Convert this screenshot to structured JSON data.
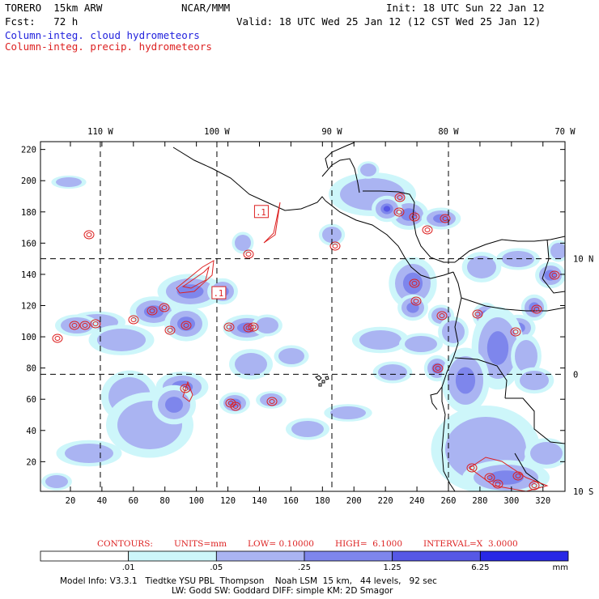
{
  "header": {
    "model": "TORERO  15km ARW",
    "center": "NCAR/MMM",
    "init": "Init: 18 UTC Sun 22 Jan 12",
    "fcst": "Fcst:   72 h",
    "valid": "Valid: 18 UTC Wed 25 Jan 12 (12 CST Wed 25 Jan 12)",
    "field1": "Column-integ. cloud hydrometeors",
    "field2": "Column-integ. precip. hydrometeors"
  },
  "colors": {
    "field1": "#2222dd",
    "field2": "#dd2222",
    "grid": "#000000"
  },
  "chart_data": {
    "type": "heatmap",
    "x_ticks": [
      "20",
      "40",
      "60",
      "80",
      "100",
      "120",
      "140",
      "160",
      "180",
      "200",
      "220",
      "240",
      "260",
      "280",
      "300",
      "320"
    ],
    "x_tick_values": [
      20,
      40,
      60,
      80,
      100,
      120,
      140,
      160,
      180,
      200,
      220,
      240,
      260,
      280,
      300,
      320
    ],
    "y_ticks": [
      "20",
      "40",
      "60",
      "80",
      "100",
      "120",
      "140",
      "160",
      "180",
      "200",
      "220"
    ],
    "y_tick_values": [
      20,
      40,
      60,
      80,
      100,
      120,
      140,
      160,
      180,
      200,
      220
    ],
    "xlim": [
      1,
      334
    ],
    "ylim": [
      1,
      225
    ],
    "lon_labels": [
      "110 W",
      "100 W",
      "90 W",
      "80 W",
      "70 W"
    ],
    "lon_grid_x": [
      39,
      113,
      186,
      260,
      334
    ],
    "lat_labels": [
      "10 N",
      "0",
      "10 S"
    ],
    "lat_grid_y": [
      150,
      76,
      1
    ],
    "contours": {
      "label": "CONTOURS:",
      "units": "UNITS=mm",
      "low": "LOW= 0.10000",
      "high": "HIGH=  6.1000",
      "interval": "INTERVAL=X  3.0000",
      "labels": [
        {
          "text": ".1",
          "x": 141,
          "y": 180
        },
        {
          "text": ".1",
          "x": 114,
          "y": 128
        }
      ]
    },
    "colorbar": {
      "boundaries": [
        ".01",
        ".05",
        ".25",
        "1.25",
        "6.25"
      ],
      "unit": "mm",
      "colors": [
        "#ffffff",
        "#cdf6fa",
        "#aab4f2",
        "#7e86ec",
        "#5658e6",
        "#2828e6"
      ]
    }
  },
  "footer": {
    "line1": "Model Info: V3.3.1   Tiedtke YSU PBL  Thompson    Noah LSM  15 km,   44 levels,   92 sec",
    "line2": "LW: Godd SW: Goddard DIFF: simple KM: 2D Smagor"
  }
}
